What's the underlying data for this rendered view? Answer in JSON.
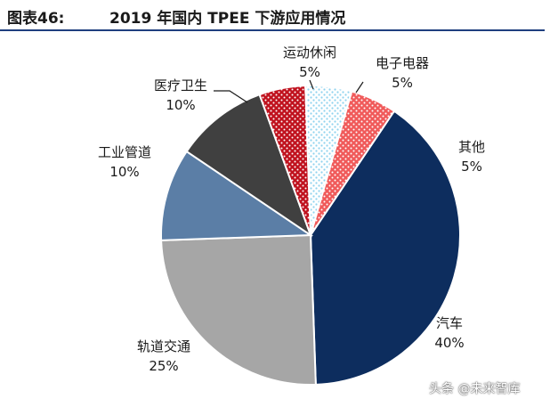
{
  "header": {
    "figure_label": "图表46:",
    "title": "2019 年国内 TPEE 下游应用情况"
  },
  "chart_data": {
    "type": "pie",
    "title": "2019 年国内 TPEE 下游应用情况",
    "slices": [
      {
        "label": "汽车",
        "value": 40,
        "pct_label": "40%",
        "color": "#0d2d5e",
        "pattern": "solid"
      },
      {
        "label": "轨道交通",
        "value": 25,
        "pct_label": "25%",
        "color": "#a6a6a6",
        "pattern": "solid"
      },
      {
        "label": "工业管道",
        "value": 10,
        "pct_label": "10%",
        "color": "#5b7ea6",
        "pattern": "solid"
      },
      {
        "label": "医疗卫生",
        "value": 10,
        "pct_label": "10%",
        "color": "#404040",
        "pattern": "solid"
      },
      {
        "label": "运动休闲",
        "value": 5,
        "pct_label": "5%",
        "color": "#c0121e",
        "pattern": "dots-white"
      },
      {
        "label": "电子电器",
        "value": 5,
        "pct_label": "5%",
        "color": "#bfe6f5",
        "pattern": "dots-light"
      },
      {
        "label": "其他",
        "value": 5,
        "pct_label": "5%",
        "color": "#f05a5a",
        "pattern": "dots-white"
      }
    ]
  },
  "watermark": "头条 @未来智库"
}
